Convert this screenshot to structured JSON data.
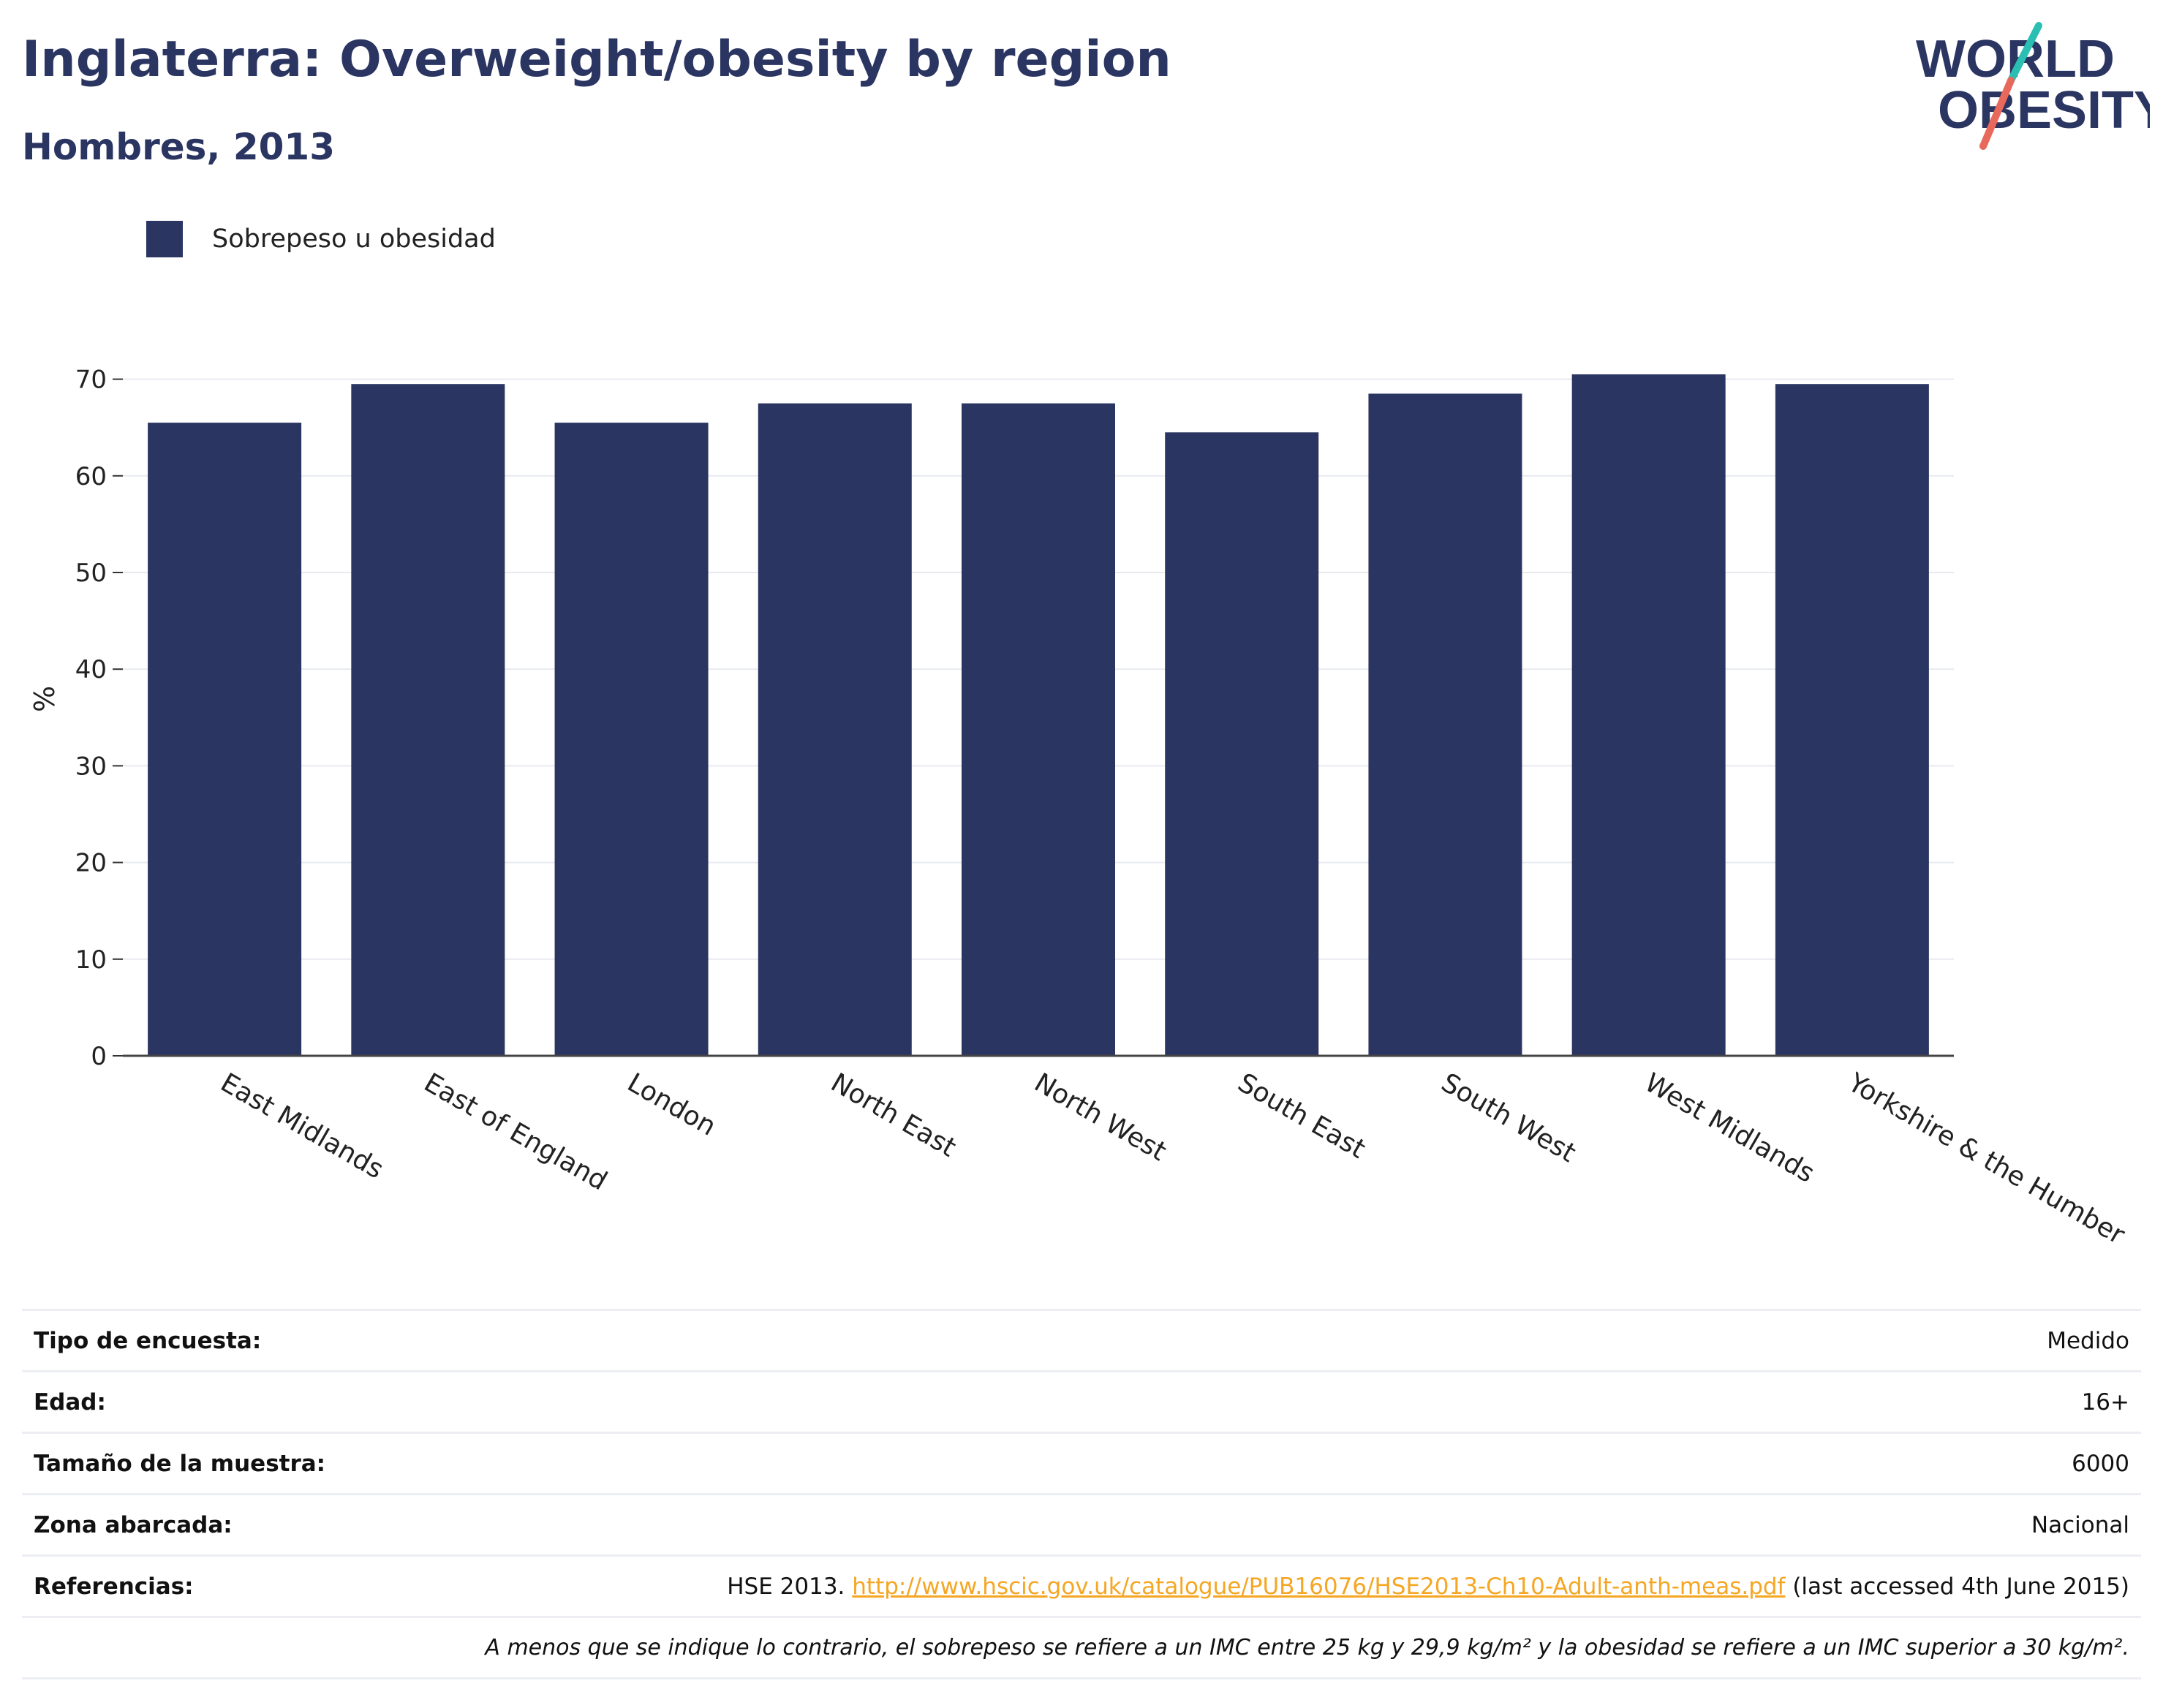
{
  "header": {
    "title": "Inglaterra: Overweight/obesity by region",
    "subtitle": "Hombres, 2013"
  },
  "logo": {
    "line1": "WORLD",
    "line2": "OBESITY"
  },
  "colors": {
    "bar": "#2b3562",
    "title": "#2b3562",
    "grid": "#e8eaf0",
    "link": "#f5a623",
    "logo_teal": "#2bbfb3",
    "logo_coral": "#e8695b"
  },
  "chart_data": {
    "type": "bar",
    "categories": [
      "East Midlands",
      "East of England",
      "London",
      "North East",
      "North West",
      "South East",
      "South West",
      "West Midlands",
      "Yorkshire & the Humber"
    ],
    "series": [
      {
        "name": "Sobrepeso u obesidad",
        "values": [
          65.5,
          69.5,
          65.5,
          67.5,
          67.5,
          64.5,
          68.5,
          70.5,
          69.5
        ]
      }
    ],
    "ylabel": "%",
    "ylim": [
      0,
      73
    ],
    "yticks": [
      0,
      10,
      20,
      30,
      40,
      50,
      60,
      70
    ],
    "grid": true,
    "legend": "top-left"
  },
  "info": {
    "rows": [
      {
        "key": "Tipo de encuesta:",
        "value": "Medido"
      },
      {
        "key": "Edad:",
        "value": "16+"
      },
      {
        "key": "Tamaño de la muestra:",
        "value": "6000"
      },
      {
        "key": "Zona abarcada:",
        "value": "Nacional"
      }
    ],
    "references": {
      "key": "Referencias:",
      "prefix": "HSE 2013. ",
      "link": "http://www.hscic.gov.uk/catalogue/PUB16076/HSE2013-Ch10-Adult-anth-meas.pdf",
      "suffix": " (last accessed 4th June 2015)"
    },
    "note": "A menos que se indique lo contrario, el sobrepeso se refiere a un IMC entre 25 kg y 29,9 kg/m² y la obesidad se refiere a un IMC superior a 30 kg/m²."
  }
}
